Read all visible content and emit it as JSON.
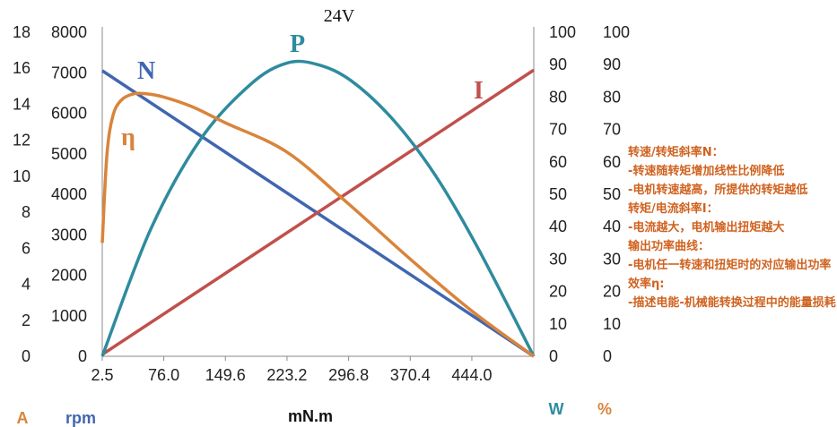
{
  "chart_data": {
    "type": "line",
    "title": "24V",
    "xlabel": "mN.m",
    "x_ticks": [
      "2.5",
      "76.0",
      "149.6",
      "223.2",
      "296.8",
      "370.4",
      "444.0"
    ],
    "x_range": [
      2.5,
      518
    ],
    "axes": {
      "current": {
        "unit": "A",
        "range": [
          0,
          18
        ],
        "ticks": [
          "0",
          "2",
          "4",
          "6",
          "8",
          "10",
          "12",
          "14",
          "16",
          "18"
        ]
      },
      "speed": {
        "unit": "rpm",
        "range": [
          0,
          8000
        ],
        "ticks": [
          "0",
          "1000",
          "2000",
          "3000",
          "4000",
          "5000",
          "6000",
          "7000",
          "8000"
        ]
      },
      "power": {
        "unit": "W",
        "range": [
          0,
          100
        ],
        "ticks": [
          "0",
          "10",
          "20",
          "30",
          "40",
          "50",
          "60",
          "70",
          "80",
          "90",
          "100"
        ]
      },
      "efficiency": {
        "unit": "%",
        "range": [
          0,
          100
        ],
        "ticks": [
          "0",
          "10",
          "20",
          "30",
          "40",
          "50",
          "60",
          "70",
          "80",
          "90",
          "100"
        ]
      }
    },
    "series": [
      {
        "name": "N",
        "axis": "speed",
        "color": "#4166b0",
        "x": [
          2.5,
          518
        ],
        "y": [
          7050,
          0
        ]
      },
      {
        "name": "I",
        "axis": "current",
        "color": "#c0504d",
        "x": [
          2.5,
          518
        ],
        "y": [
          0.1,
          15.9
        ]
      },
      {
        "name": "P",
        "axis": "power",
        "color": "#2f8b9e",
        "x": [
          2.5,
          60,
          120,
          180,
          223.2,
          260,
          300,
          350,
          400,
          450,
          518
        ],
        "y": [
          0,
          39,
          67,
          84,
          90.5,
          90,
          85,
          73,
          56,
          34,
          0
        ]
      },
      {
        "name": "η",
        "axis": "efficiency",
        "color": "#d9843b",
        "x": [
          2.5,
          8,
          15,
          25,
          40,
          55,
          76,
          110,
          150,
          223.2,
          296.8,
          370.4,
          444,
          518
        ],
        "y": [
          35,
          62,
          74,
          79,
          81,
          81,
          80,
          77,
          72,
          63,
          47,
          30,
          14,
          0
        ]
      }
    ]
  },
  "notes": [
    "转速/转矩斜率N：",
    "-转速随转矩增加线性比例降低",
    "-电机转速越高，所提供的转矩越低",
    "转矩/电流斜率I：",
    "-电流越大，电机输出扭矩越大",
    "输出功率曲线：",
    "-电机任一转速和扭矩时的对应输出功率",
    "效率η:",
    "-描述电能-机械能转换过程中的能量损耗"
  ],
  "colors": {
    "current_unit": "#d9843b",
    "speed_unit": "#4166b0",
    "power_unit": "#2f8b9e",
    "eff_unit": "#d9843b",
    "notes": "#d0621f"
  }
}
